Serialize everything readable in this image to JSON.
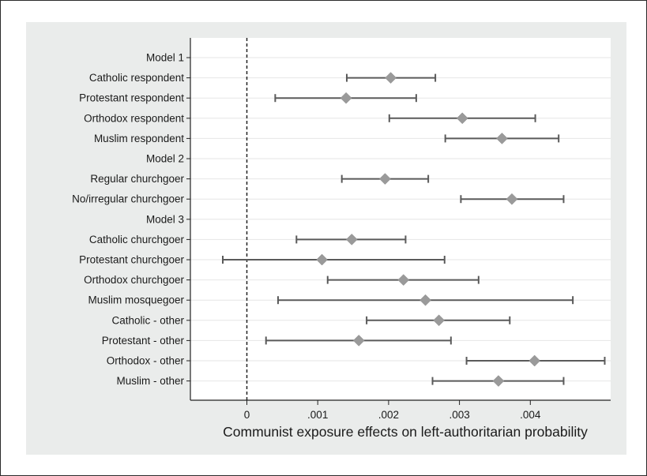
{
  "chart_data": {
    "type": "scatter",
    "style": "dot-and-whisker",
    "xlabel": "Communist exposure effects on left-authoritarian probability",
    "xlim": [
      -0.0004,
      0.0051
    ],
    "x_ticks": [
      {
        "value": 0,
        "label": "0"
      },
      {
        "value": 0.001,
        "label": ".001"
      },
      {
        "value": 0.002,
        "label": ".002"
      },
      {
        "value": 0.003,
        "label": ".003"
      },
      {
        "value": 0.004,
        "label": ".004"
      }
    ],
    "reference_line": {
      "x": 0,
      "style": "dashed"
    },
    "grid": true,
    "marker_color": "#9a9a9a",
    "ci_color": "#5a5a5a",
    "rows": [
      {
        "label": "Model 1",
        "header": true
      },
      {
        "label": "Catholic respondent",
        "estimate": 0.00203,
        "low": 0.00141,
        "high": 0.00266
      },
      {
        "label": "Protestant respondent",
        "estimate": 0.0014,
        "low": 0.0004,
        "high": 0.00239
      },
      {
        "label": "Orthodox respondent",
        "estimate": 0.00304,
        "low": 0.00201,
        "high": 0.00407
      },
      {
        "label": "Muslim respondent",
        "estimate": 0.0036,
        "low": 0.0028,
        "high": 0.0044
      },
      {
        "label": "Model 2",
        "header": true
      },
      {
        "label": "Regular churchgoer",
        "estimate": 0.00195,
        "low": 0.00134,
        "high": 0.00256
      },
      {
        "label": "No/irregular churchgoer",
        "estimate": 0.00374,
        "low": 0.00302,
        "high": 0.00447
      },
      {
        "label": "Model 3",
        "header": true
      },
      {
        "label": "Catholic churchgoer",
        "estimate": 0.00148,
        "low": 0.0007,
        "high": 0.00224
      },
      {
        "label": "Protestant churchgoer",
        "estimate": 0.00106,
        "low": -0.00034,
        "high": 0.00279
      },
      {
        "label": "Orthodox churchgoer",
        "estimate": 0.00221,
        "low": 0.00114,
        "high": 0.00327
      },
      {
        "label": "Muslim mosquegoer",
        "estimate": 0.00252,
        "low": 0.00044,
        "high": 0.0046
      },
      {
        "label": "Catholic - other",
        "estimate": 0.00271,
        "low": 0.00169,
        "high": 0.00371
      },
      {
        "label": "Protestant - other",
        "estimate": 0.00158,
        "low": 0.00027,
        "high": 0.00288
      },
      {
        "label": "Orthodox - other",
        "estimate": 0.00406,
        "low": 0.0031,
        "high": 0.00505
      },
      {
        "label": "Muslim - other",
        "estimate": 0.00355,
        "low": 0.00262,
        "high": 0.00447
      }
    ]
  }
}
